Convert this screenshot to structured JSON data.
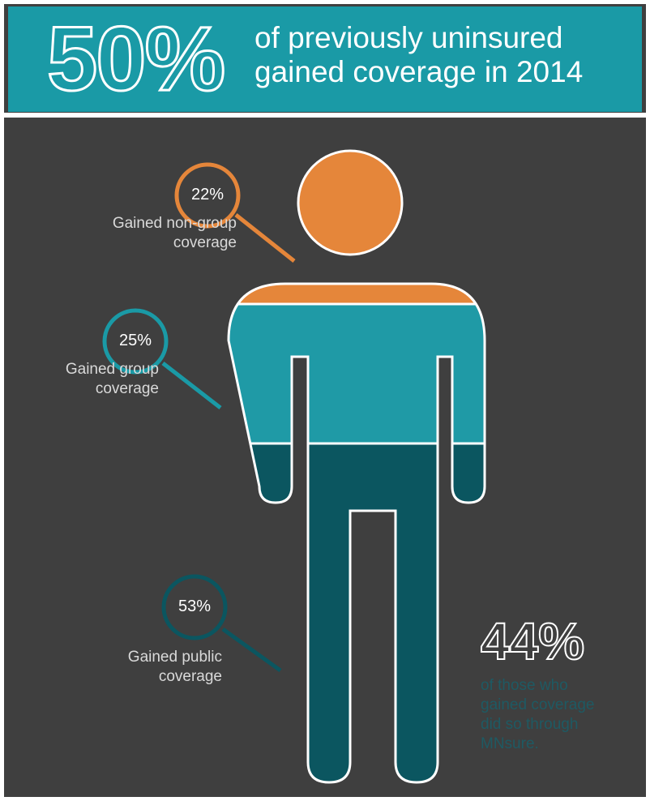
{
  "header": {
    "stat": "50%",
    "line1": "of previously uninsured",
    "line2": "gained coverage in 2014"
  },
  "callouts": [
    {
      "pct": "22%",
      "label_line1": "Gained non-group",
      "label_line2": "coverage",
      "color": "#e5863a"
    },
    {
      "pct": "25%",
      "label_line1": "Gained group",
      "label_line2": "coverage",
      "color": "#1a9aa6"
    },
    {
      "pct": "53%",
      "label_line1": "Gained public",
      "label_line2": "coverage",
      "color": "#0b5660"
    }
  ],
  "side_stat": {
    "value": "44%",
    "line1": "of those who",
    "line2": "gained coverage",
    "line3": "did so through",
    "line4": "MNsure."
  },
  "colors": {
    "orange": "#e5863a",
    "teal": "#1a9aa6",
    "dark_teal": "#0b5660",
    "background": "#3f3f3f"
  }
}
